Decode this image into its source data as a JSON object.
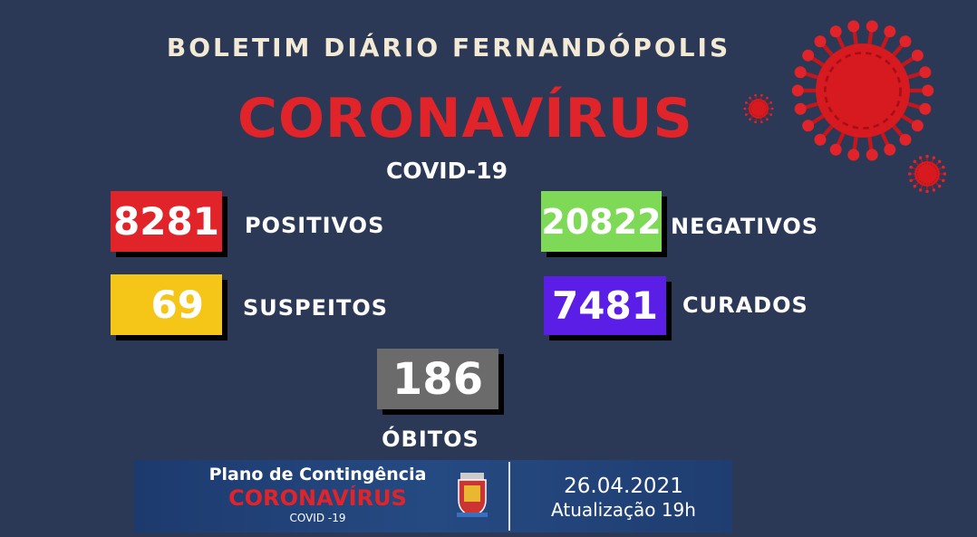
{
  "header": {
    "title": "BOLETIM DIÁRIO FERNANDÓPOLIS",
    "headline": "CORONAVÍRUS",
    "subtitle": "COVID-19"
  },
  "stats": {
    "positivos": {
      "value": "8281",
      "label": "POSITIVOS",
      "color": "#e0242a"
    },
    "negativos": {
      "value": "20822",
      "label": "NEGATIVOS",
      "color": "#7ed957"
    },
    "suspeitos": {
      "value": "69",
      "label": "SUSPEITOS",
      "color": "#f5c518"
    },
    "curados": {
      "value": "7481",
      "label": "CURADOS",
      "color": "#5a1ee6"
    },
    "obitos": {
      "value": "186",
      "label": "ÓBITOS",
      "color": "#6b6b6b"
    }
  },
  "banner": {
    "line1": "Plano de Contingência",
    "line2": "CORONAVÍRUS",
    "line3": "COVID -19",
    "date": "26.04.2021",
    "update": "Atualização 19h"
  }
}
